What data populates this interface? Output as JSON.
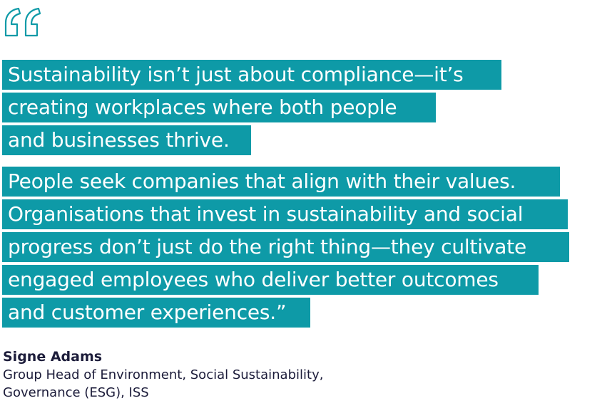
{
  "quote": {
    "paragraph1": [
      "Sustainability isn’t just about compliance—it’s",
      "creating workplaces where both people",
      "and businesses thrive."
    ],
    "paragraph2": [
      "People seek companies that align with their values.",
      "Organisations that invest in sustainability and social",
      "progress don’t just do the right thing—they cultivate",
      "engaged employees who deliver better outcomes",
      "and customer experiences.”"
    ]
  },
  "attribution": {
    "name": "Signe Adams",
    "role_line1": "Group Head of Environment, Social Sustainability,",
    "role_line2": "Governance (ESG), ISS"
  },
  "colors": {
    "highlight": "#0e9aa7",
    "quote_mark": "#0e9aa7",
    "text_on_highlight": "#ffffff",
    "attribution_text": "#1c1c3a"
  },
  "icons": {
    "quote_mark": "open-quote-icon"
  }
}
